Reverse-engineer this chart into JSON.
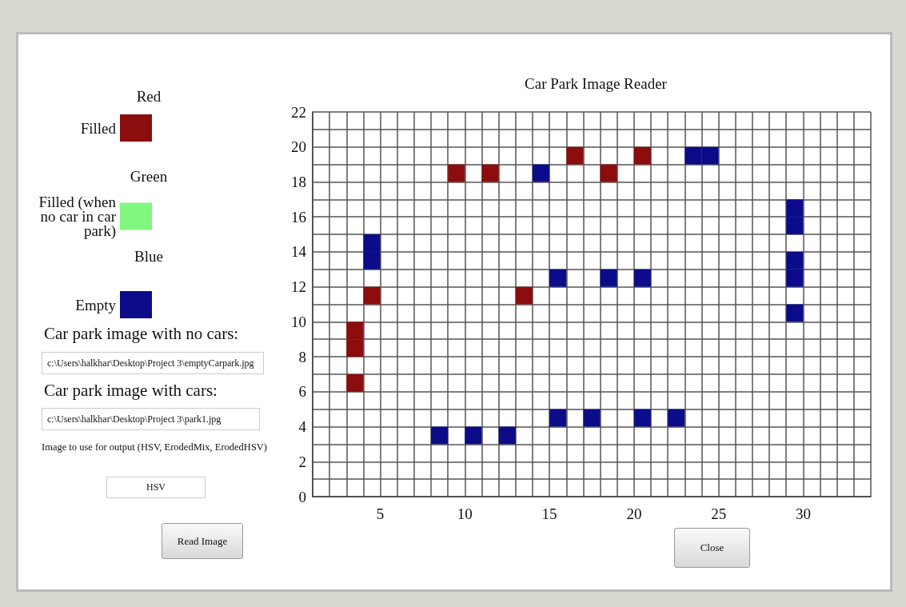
{
  "chart_data": {
    "type": "scatter",
    "title": "Car Park Image Reader",
    "marker": "square",
    "grid": true,
    "legend": "left",
    "xlim": [
      1,
      34
    ],
    "ylim": [
      0,
      22
    ],
    "xticks": [
      {
        "value": 1,
        "label": null
      },
      {
        "value": 2,
        "label": null
      },
      {
        "value": 3,
        "label": null
      },
      {
        "value": 4,
        "label": null
      },
      5,
      {
        "value": 6,
        "label": null
      },
      {
        "value": 7,
        "label": null
      },
      {
        "value": 8,
        "label": null
      },
      {
        "value": 9,
        "label": null
      },
      10,
      {
        "value": 11,
        "label": null
      },
      {
        "value": 12,
        "label": null
      },
      {
        "value": 13,
        "label": null
      },
      {
        "value": 14,
        "label": null
      },
      15,
      {
        "value": 16,
        "label": null
      },
      {
        "value": 17,
        "label": null
      },
      {
        "value": 18,
        "label": null
      },
      {
        "value": 19,
        "label": null
      },
      20,
      {
        "value": 21,
        "label": null
      },
      {
        "value": 22,
        "label": null
      },
      {
        "value": 23,
        "label": null
      },
      {
        "value": 24,
        "label": null
      },
      25,
      {
        "value": 26,
        "label": null
      },
      {
        "value": 27,
        "label": null
      },
      {
        "value": 28,
        "label": null
      },
      {
        "value": 29,
        "label": null
      },
      30,
      {
        "value": 31,
        "label": null
      },
      {
        "value": 32,
        "label": null
      },
      {
        "value": 33,
        "label": null
      },
      {
        "value": 34,
        "label": null
      }
    ],
    "yticks": [
      0,
      {
        "value": 1,
        "label": null
      },
      2,
      {
        "value": 3,
        "label": null
      },
      4,
      {
        "value": 5,
        "label": null
      },
      6,
      {
        "value": 7,
        "label": null
      },
      8,
      {
        "value": 9,
        "label": null
      },
      10,
      {
        "value": 11,
        "label": null
      },
      12,
      {
        "value": 13,
        "label": null
      },
      14,
      {
        "value": 15,
        "label": null
      },
      16,
      {
        "value": 17,
        "label": null
      },
      18,
      {
        "value": 19,
        "label": null
      },
      20,
      {
        "value": 21,
        "label": null
      },
      22
    ],
    "series": [
      {
        "name": "Filled",
        "color": "#8b0d0d",
        "x": [
          3.5,
          3.5,
          3.5,
          4.5,
          9.5,
          11.5,
          13.5,
          16.5,
          18.5,
          20.5
        ],
        "values": [
          6.5,
          8.5,
          9.5,
          11.5,
          18.5,
          18.5,
          11.5,
          19.5,
          18.5,
          19.5
        ]
      },
      {
        "name": "Filled (when no car in car park)",
        "color": "#80f880"
      },
      {
        "name": "Empty",
        "color": "#0c0c8a",
        "x": [
          4.5,
          4.5,
          14.5,
          15.5,
          18.5,
          20.5,
          23.5,
          24.5,
          29.5,
          29.5,
          29.5,
          29.5,
          29.5,
          8.5,
          10.5,
          12.5,
          15.5,
          17.5,
          20.5,
          22.5
        ],
        "values": [
          13.5,
          14.5,
          18.5,
          12.5,
          12.5,
          12.5,
          19.5,
          19.5,
          16.5,
          15.5,
          13.5,
          12.5,
          10.5,
          3.5,
          3.5,
          3.5,
          4.5,
          4.5,
          4.5,
          4.5
        ]
      }
    ],
    "annotations": [
      "Red",
      "Green",
      "Blue",
      "Car park image with no cars:",
      "c:\\Users\\halkhar\\Desktop\\Project 3\\emptyCarpark.jpg",
      "Car park image with cars:",
      "c:\\Users\\halkhar\\Desktop\\Project 3\\park1.jpg",
      "Image to use for output (HSV, ErodedMix, ErodedHSV)",
      "HSV",
      "Read Image",
      "Close"
    ]
  }
}
